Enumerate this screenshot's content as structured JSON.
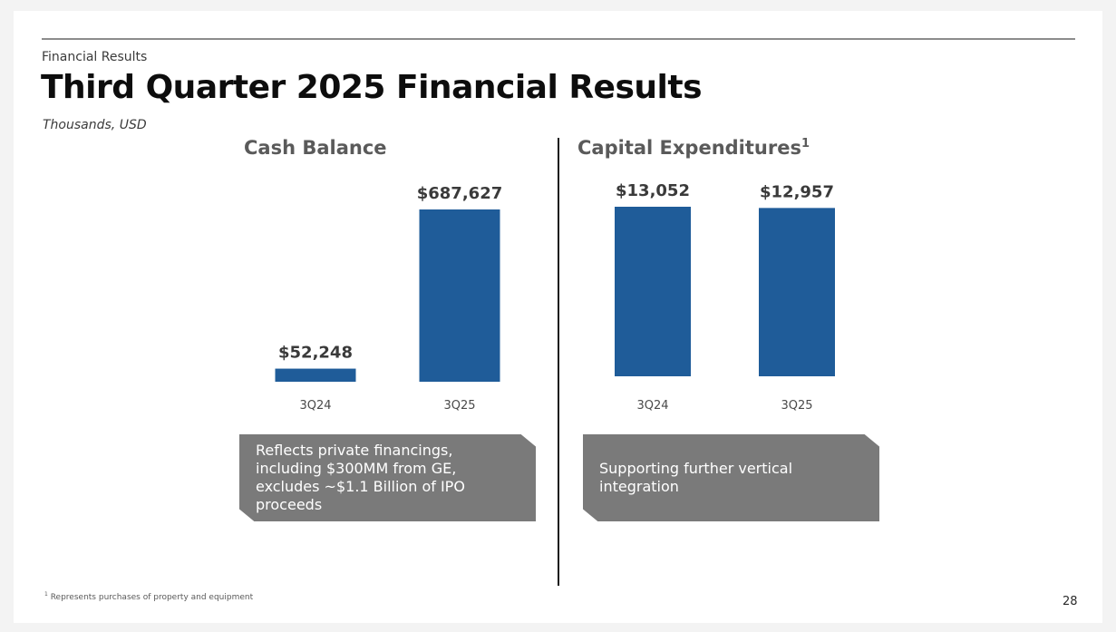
{
  "header": {
    "section_label": "Financial Results",
    "title": "Third Quarter 2025 Financial Results",
    "units": "Thousands, USD"
  },
  "chart_data": [
    {
      "type": "bar",
      "title": "Cash Balance",
      "categories": [
        "3Q24",
        "3Q25"
      ],
      "values": [
        52248,
        687627
      ],
      "value_labels": [
        "$52,248",
        "$687,627"
      ],
      "ylim": [
        0,
        687627
      ],
      "color": "#1f5c99",
      "grid": false
    },
    {
      "type": "bar",
      "title": "Capital Expenditures",
      "title_footnote_mark": "1",
      "categories": [
        "3Q24",
        "3Q25"
      ],
      "values": [
        13052,
        12957
      ],
      "value_labels": [
        "$13,052",
        "$12,957"
      ],
      "ylim": [
        0,
        13052
      ],
      "color": "#1f5c99",
      "grid": false
    }
  ],
  "notes": {
    "cash": "Reflects private financings, including $300MM from GE, excludes ~$1.1 Billion of IPO proceeds",
    "capex": "Supporting further vertical integration"
  },
  "footnote": {
    "mark": "1",
    "text": "Represents purchases of property and equipment"
  },
  "page_number": "28",
  "colors": {
    "bar": "#1f5c99",
    "note_box": "#7a7a7a",
    "divider": "#1a1a1a"
  }
}
